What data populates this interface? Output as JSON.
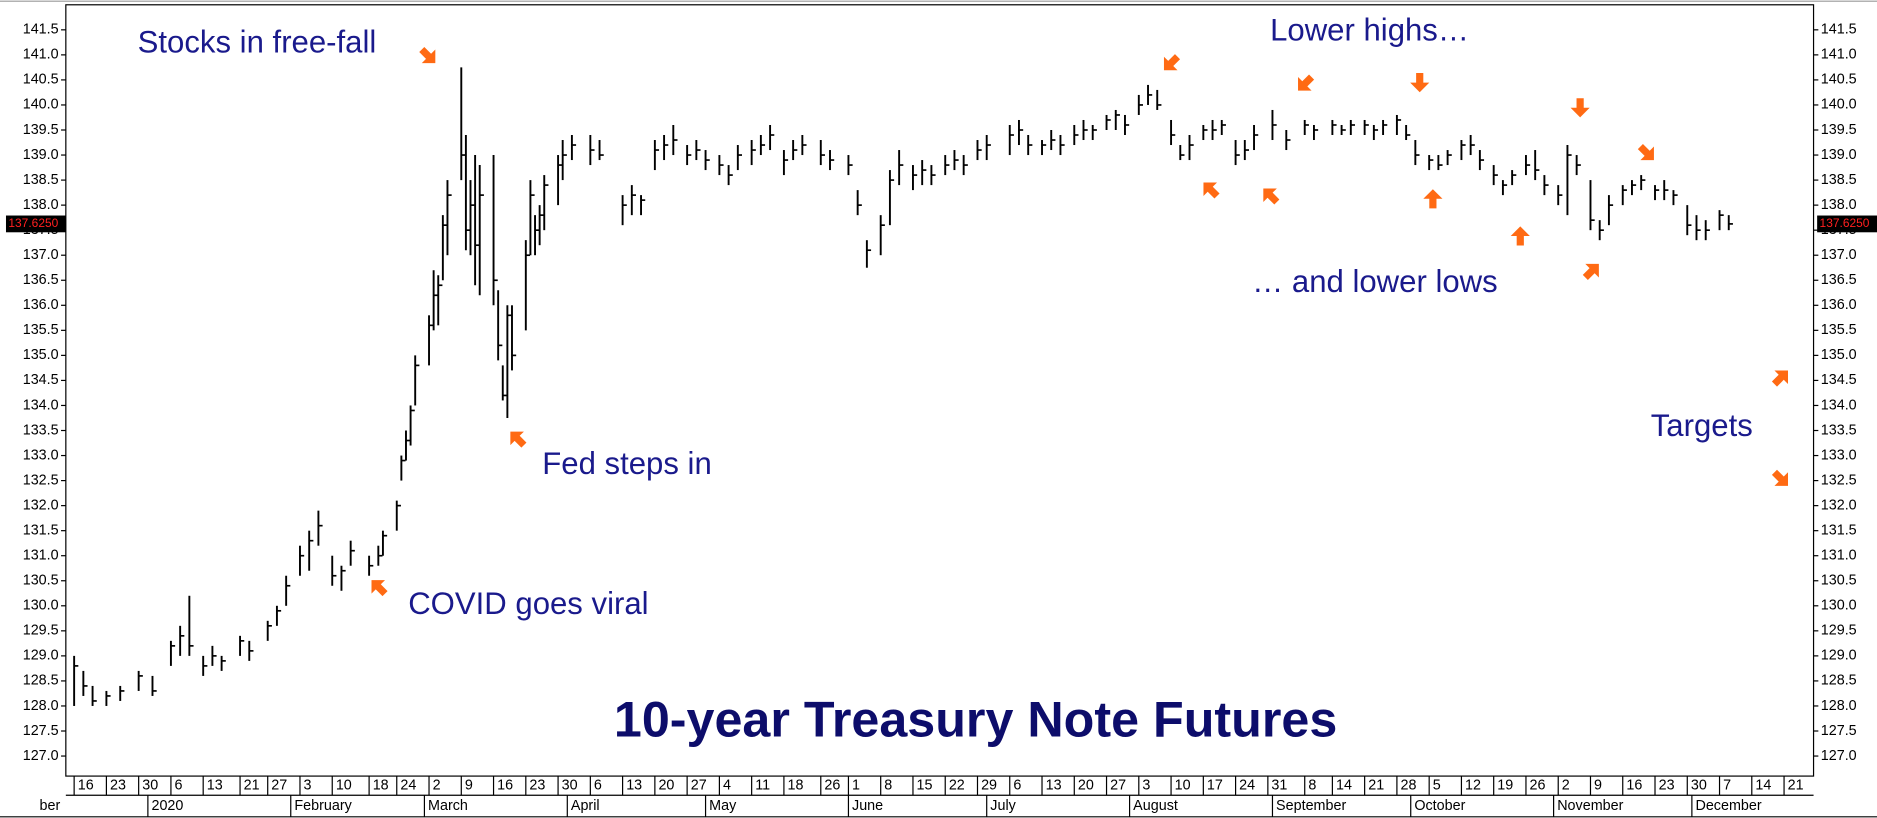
{
  "chart_data": {
    "type": "ohlc",
    "title": "10-year Treasury Note Futures",
    "annotations": [
      "Stocks in free-fall",
      "Fed steps in",
      "COVID goes viral",
      "Lower highs…",
      "… and lower lows",
      "Targets"
    ],
    "x": [
      0,
      2,
      4,
      7,
      10,
      14,
      17,
      21,
      23,
      25,
      28,
      30,
      32,
      36,
      38,
      42,
      44,
      46,
      49,
      51,
      53,
      56,
      58,
      60,
      64,
      66,
      67,
      70,
      71,
      72,
      73,
      74,
      77,
      78,
      79,
      80,
      81,
      84,
      85,
      86,
      87,
      88,
      91,
      92,
      93,
      94,
      95,
      98,
      99,
      100,
      101,
      102,
      105,
      106,
      108,
      112,
      114,
      119,
      121,
      123,
      126,
      128,
      130,
      133,
      135,
      137,
      140,
      142,
      144,
      147,
      149,
      151,
      154,
      156,
      158,
      162,
      164,
      168,
      170,
      172,
      175,
      177,
      179,
      182,
      184,
      186,
      189,
      191,
      193,
      196,
      198,
      203,
      205,
      207,
      210,
      212,
      214,
      217,
      219,
      221,
      224,
      226,
      228,
      231,
      233,
      235,
      238,
      240,
      242,
      245,
      247,
      249,
      252,
      254,
      256,
      260,
      263,
      267,
      269,
      273,
      275,
      277,
      280,
      282,
      284,
      287,
      289,
      291,
      294,
      296,
      298,
      301,
      303,
      305,
      308,
      310,
      312,
      315,
      317,
      319,
      322,
      324,
      326,
      329,
      331,
      333,
      336,
      338,
      340,
      343,
      345,
      347,
      350,
      352,
      354,
      357,
      359
    ],
    "high": [
      129.0,
      128.7,
      128.4,
      128.3,
      128.4,
      128.7,
      128.6,
      129.3,
      129.6,
      130.2,
      129.0,
      129.2,
      129.0,
      129.4,
      129.3,
      129.7,
      130.0,
      130.6,
      131.2,
      131.5,
      131.9,
      131.0,
      130.8,
      131.3,
      131.0,
      131.2,
      131.5,
      132.1,
      133.0,
      133.5,
      134.0,
      135.0,
      135.8,
      136.7,
      136.6,
      137.8,
      138.5,
      140.75,
      139.4,
      138.5,
      139.0,
      138.8,
      139.0,
      136.3,
      134.8,
      136.0,
      136.0,
      137.3,
      138.5,
      137.8,
      138.0,
      138.6,
      139.0,
      139.3,
      139.4,
      139.4,
      139.3,
      138.2,
      138.4,
      138.2,
      139.3,
      139.4,
      139.6,
      139.2,
      139.3,
      139.1,
      139.0,
      138.8,
      139.2,
      139.3,
      139.4,
      139.6,
      139.1,
      139.3,
      139.4,
      139.3,
      139.1,
      139.0,
      138.3,
      137.3,
      137.8,
      138.7,
      139.1,
      138.8,
      138.9,
      138.8,
      139.0,
      139.1,
      139.0,
      139.3,
      139.4,
      139.6,
      139.7,
      139.4,
      139.3,
      139.5,
      139.4,
      139.6,
      139.7,
      139.6,
      139.8,
      139.9,
      139.8,
      140.2,
      140.4,
      140.3,
      139.7,
      139.2,
      139.4,
      139.6,
      139.7,
      139.7,
      139.3,
      139.3,
      139.6,
      139.9,
      139.5,
      139.7,
      139.6,
      139.7,
      139.6,
      139.7,
      139.7,
      139.6,
      139.7,
      139.8,
      139.6,
      139.3,
      139.0,
      139.0,
      139.1,
      139.3,
      139.4,
      139.1,
      138.8,
      138.5,
      138.7,
      139.0,
      139.1,
      138.6,
      138.4,
      139.2,
      139.0,
      138.5,
      137.7,
      138.2,
      138.4,
      138.5,
      138.6,
      138.4,
      138.5,
      138.3,
      138.0,
      137.8,
      137.7,
      137.9,
      137.8
    ],
    "low": [
      128.0,
      128.2,
      128.0,
      128.0,
      128.1,
      128.3,
      128.2,
      128.8,
      129.0,
      129.0,
      128.6,
      128.8,
      128.7,
      129.0,
      128.9,
      129.3,
      129.6,
      130.0,
      130.6,
      130.7,
      131.2,
      130.4,
      130.3,
      130.8,
      130.6,
      130.8,
      131.0,
      131.5,
      132.5,
      132.9,
      133.2,
      134.0,
      134.8,
      135.5,
      135.6,
      136.5,
      137.0,
      138.5,
      137.1,
      137.0,
      136.4,
      136.2,
      136.0,
      134.9,
      134.1,
      133.75,
      134.7,
      135.5,
      137.0,
      137.0,
      137.2,
      137.5,
      138.0,
      138.5,
      138.9,
      138.8,
      138.9,
      137.6,
      137.8,
      137.8,
      138.7,
      138.9,
      139.0,
      138.8,
      138.9,
      138.7,
      138.6,
      138.4,
      138.7,
      138.8,
      139.0,
      139.1,
      138.6,
      138.9,
      139.0,
      138.8,
      138.7,
      138.6,
      137.8,
      136.75,
      137.0,
      137.6,
      138.4,
      138.3,
      138.4,
      138.4,
      138.6,
      138.7,
      138.6,
      138.9,
      138.9,
      139.0,
      139.2,
      139.0,
      139.0,
      139.1,
      139.0,
      139.2,
      139.3,
      139.3,
      139.5,
      139.5,
      139.4,
      139.8,
      140.0,
      139.9,
      139.2,
      138.9,
      138.9,
      139.3,
      139.3,
      139.4,
      138.8,
      138.9,
      139.1,
      139.3,
      139.1,
      139.4,
      139.3,
      139.4,
      139.4,
      139.4,
      139.4,
      139.3,
      139.4,
      139.4,
      139.3,
      138.8,
      138.7,
      138.7,
      138.8,
      138.9,
      139.0,
      138.7,
      138.4,
      138.2,
      138.4,
      138.6,
      138.5,
      138.2,
      138.0,
      137.8,
      138.6,
      137.5,
      137.3,
      137.6,
      138.0,
      138.2,
      138.3,
      138.1,
      138.1,
      138.0,
      137.4,
      137.3,
      137.3,
      137.5,
      137.5
    ],
    "close": [
      128.8,
      128.4,
      128.1,
      128.2,
      128.3,
      128.6,
      128.3,
      129.2,
      129.4,
      129.2,
      128.8,
      129.0,
      128.9,
      129.3,
      129.1,
      129.6,
      129.9,
      130.4,
      131.0,
      131.3,
      131.6,
      130.6,
      130.7,
      131.1,
      130.8,
      131.0,
      131.4,
      132.0,
      132.9,
      133.3,
      133.9,
      134.8,
      135.6,
      136.2,
      136.4,
      137.6,
      138.2,
      139.0,
      137.5,
      138.0,
      137.2,
      138.2,
      136.5,
      135.2,
      134.2,
      135.8,
      135.0,
      137.0,
      138.2,
      137.5,
      137.8,
      138.4,
      138.8,
      139.0,
      139.2,
      139.1,
      139.0,
      138.0,
      138.2,
      138.1,
      139.1,
      139.2,
      139.3,
      139.0,
      139.1,
      138.9,
      138.8,
      138.6,
      139.0,
      139.1,
      139.2,
      139.4,
      138.9,
      139.1,
      139.2,
      139.0,
      138.9,
      138.8,
      138.0,
      137.1,
      137.6,
      138.5,
      138.8,
      138.6,
      138.7,
      138.6,
      138.8,
      138.9,
      138.8,
      139.1,
      139.2,
      139.4,
      139.5,
      139.2,
      139.2,
      139.3,
      139.2,
      139.4,
      139.5,
      139.5,
      139.7,
      139.8,
      139.6,
      140.0,
      140.2,
      140.0,
      139.4,
      139.0,
      139.2,
      139.5,
      139.5,
      139.6,
      139.0,
      139.1,
      139.4,
      139.6,
      139.3,
      139.6,
      139.5,
      139.6,
      139.5,
      139.6,
      139.6,
      139.5,
      139.6,
      139.7,
      139.4,
      139.0,
      138.9,
      138.8,
      139.0,
      139.2,
      139.2,
      138.9,
      138.6,
      138.4,
      138.6,
      138.8,
      138.7,
      138.4,
      138.2,
      139.0,
      138.8,
      137.7,
      137.5,
      138.0,
      138.3,
      138.4,
      138.5,
      138.3,
      138.3,
      138.2,
      137.6,
      137.5,
      137.5,
      137.8,
      137.625
    ],
    "last_price": {
      "value": 137.625,
      "label": "137.6250"
    },
    "xlim": [
      -1.8,
      377.4
    ],
    "ylim": [
      126.6,
      142.0
    ],
    "yticks": [
      {
        "value": 127,
        "label": "127.0"
      },
      {
        "value": 127.5,
        "label": "127.5"
      },
      {
        "value": 128,
        "label": "128.0"
      },
      {
        "value": 128.5,
        "label": "128.5"
      },
      {
        "value": 129,
        "label": "129.0"
      },
      {
        "value": 129.5,
        "label": "129.5"
      },
      {
        "value": 130,
        "label": "130.0"
      },
      {
        "value": 130.5,
        "label": "130.5"
      },
      {
        "value": 131,
        "label": "131.0"
      },
      {
        "value": 131.5,
        "label": "131.5"
      },
      {
        "value": 132,
        "label": "132.0"
      },
      {
        "value": 132.5,
        "label": "132.5"
      },
      {
        "value": 133,
        "label": "133.0"
      },
      {
        "value": 133.5,
        "label": "133.5"
      },
      {
        "value": 134,
        "label": "134.0"
      },
      {
        "value": 134.5,
        "label": "134.5"
      },
      {
        "value": 135,
        "label": "135.0"
      },
      {
        "value": 135.5,
        "label": "135.5"
      },
      {
        "value": 136,
        "label": "136.0"
      },
      {
        "value": 136.5,
        "label": "136.5"
      },
      {
        "value": 137,
        "label": "137.0"
      },
      {
        "value": 137.5,
        "label": "137.5"
      },
      {
        "value": 138,
        "label": "138.0"
      },
      {
        "value": 138.5,
        "label": "138.5"
      },
      {
        "value": 139,
        "label": "139.0"
      },
      {
        "value": 139.5,
        "label": "139.5"
      },
      {
        "value": 140,
        "label": "140.0"
      },
      {
        "value": 140.5,
        "label": "140.5"
      },
      {
        "value": 141,
        "label": "141.0"
      },
      {
        "value": 141.5,
        "label": "141.5"
      }
    ],
    "xticks": [
      {
        "value": 0,
        "label": "16"
      },
      {
        "value": 7,
        "label": "23"
      },
      {
        "value": 14,
        "label": "30"
      },
      {
        "value": 21,
        "label": "6"
      },
      {
        "value": 28,
        "label": "13"
      },
      {
        "value": 36,
        "label": "21"
      },
      {
        "value": 42,
        "label": "27"
      },
      {
        "value": 49,
        "label": "3"
      },
      {
        "value": 56,
        "label": "10"
      },
      {
        "value": 64,
        "label": "18"
      },
      {
        "value": 70,
        "label": "24"
      },
      {
        "value": 77,
        "label": "2"
      },
      {
        "value": 84,
        "label": "9"
      },
      {
        "value": 91,
        "label": "16"
      },
      {
        "value": 98,
        "label": "23"
      },
      {
        "value": 105,
        "label": "30"
      },
      {
        "value": 112,
        "label": "6"
      },
      {
        "value": 119,
        "label": "13"
      },
      {
        "value": 126,
        "label": "20"
      },
      {
        "value": 133,
        "label": "27"
      },
      {
        "value": 140,
        "label": "4"
      },
      {
        "value": 147,
        "label": "11"
      },
      {
        "value": 154,
        "label": "18"
      },
      {
        "value": 162,
        "label": "26"
      },
      {
        "value": 168,
        "label": "1"
      },
      {
        "value": 175,
        "label": "8"
      },
      {
        "value": 182,
        "label": "15"
      },
      {
        "value": 189,
        "label": "22"
      },
      {
        "value": 196,
        "label": "29"
      },
      {
        "value": 203,
        "label": "6"
      },
      {
        "value": 210,
        "label": "13"
      },
      {
        "value": 217,
        "label": "20"
      },
      {
        "value": 224,
        "label": "27"
      },
      {
        "value": 231,
        "label": "3"
      },
      {
        "value": 238,
        "label": "10"
      },
      {
        "value": 245,
        "label": "17"
      },
      {
        "value": 252,
        "label": "24"
      },
      {
        "value": 259,
        "label": "31"
      },
      {
        "value": 267,
        "label": "8"
      },
      {
        "value": 273,
        "label": "14"
      },
      {
        "value": 280,
        "label": "21"
      },
      {
        "value": 287,
        "label": "28"
      },
      {
        "value": 294,
        "label": "5"
      },
      {
        "value": 301,
        "label": "12"
      },
      {
        "value": 308,
        "label": "19"
      },
      {
        "value": 315,
        "label": "26"
      },
      {
        "value": 322,
        "label": "2"
      },
      {
        "value": 329,
        "label": "9"
      },
      {
        "value": 336,
        "label": "16"
      },
      {
        "value": 343,
        "label": "23"
      },
      {
        "value": 350,
        "label": "30"
      },
      {
        "value": 357,
        "label": "7"
      },
      {
        "value": 364,
        "label": "14"
      },
      {
        "value": 371,
        "label": "21"
      }
    ],
    "month_ticks": [
      {
        "value": -15,
        "label": "ber"
      },
      {
        "value": 16,
        "label": "2020"
      },
      {
        "value": 47,
        "label": "February"
      },
      {
        "value": 76,
        "label": "March"
      },
      {
        "value": 107,
        "label": "April"
      },
      {
        "value": 137,
        "label": "May"
      },
      {
        "value": 168,
        "label": "June"
      },
      {
        "value": 198,
        "label": "July"
      },
      {
        "value": 229,
        "label": "August"
      },
      {
        "value": 260,
        "label": "September"
      },
      {
        "value": 290,
        "label": "October"
      },
      {
        "value": 321,
        "label": "November"
      },
      {
        "value": 351,
        "label": "December"
      }
    ],
    "color": "#000000",
    "grid": false
  }
}
